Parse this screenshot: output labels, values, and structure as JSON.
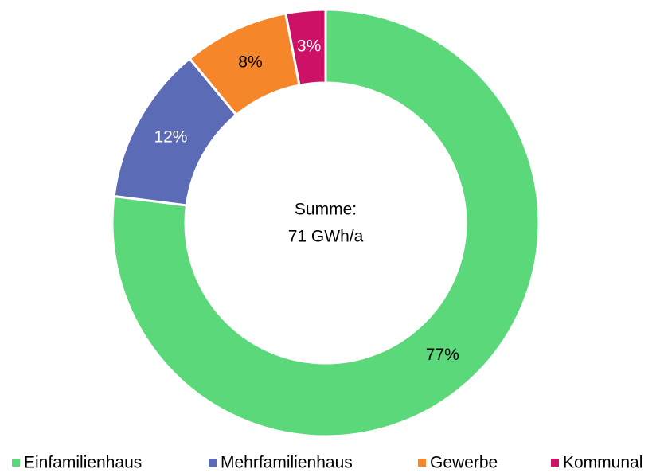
{
  "chart_data": {
    "type": "donut",
    "categories": [
      "Einfamilienhaus",
      "Mehrfamilienhaus",
      "Gewerbe",
      "Kommunal"
    ],
    "values": [
      77,
      12,
      8,
      3
    ],
    "value_labels": [
      "77%",
      "12%",
      "8%",
      "3%"
    ],
    "colors": [
      "#5ad87a",
      "#5b6bb5",
      "#f5862a",
      "#cc1166"
    ],
    "label_colors": [
      "#000000",
      "#ffffff",
      "#000000",
      "#ffffff"
    ],
    "center_text": [
      "Summe:",
      "71 GWh/a"
    ],
    "legend": "bottom"
  }
}
